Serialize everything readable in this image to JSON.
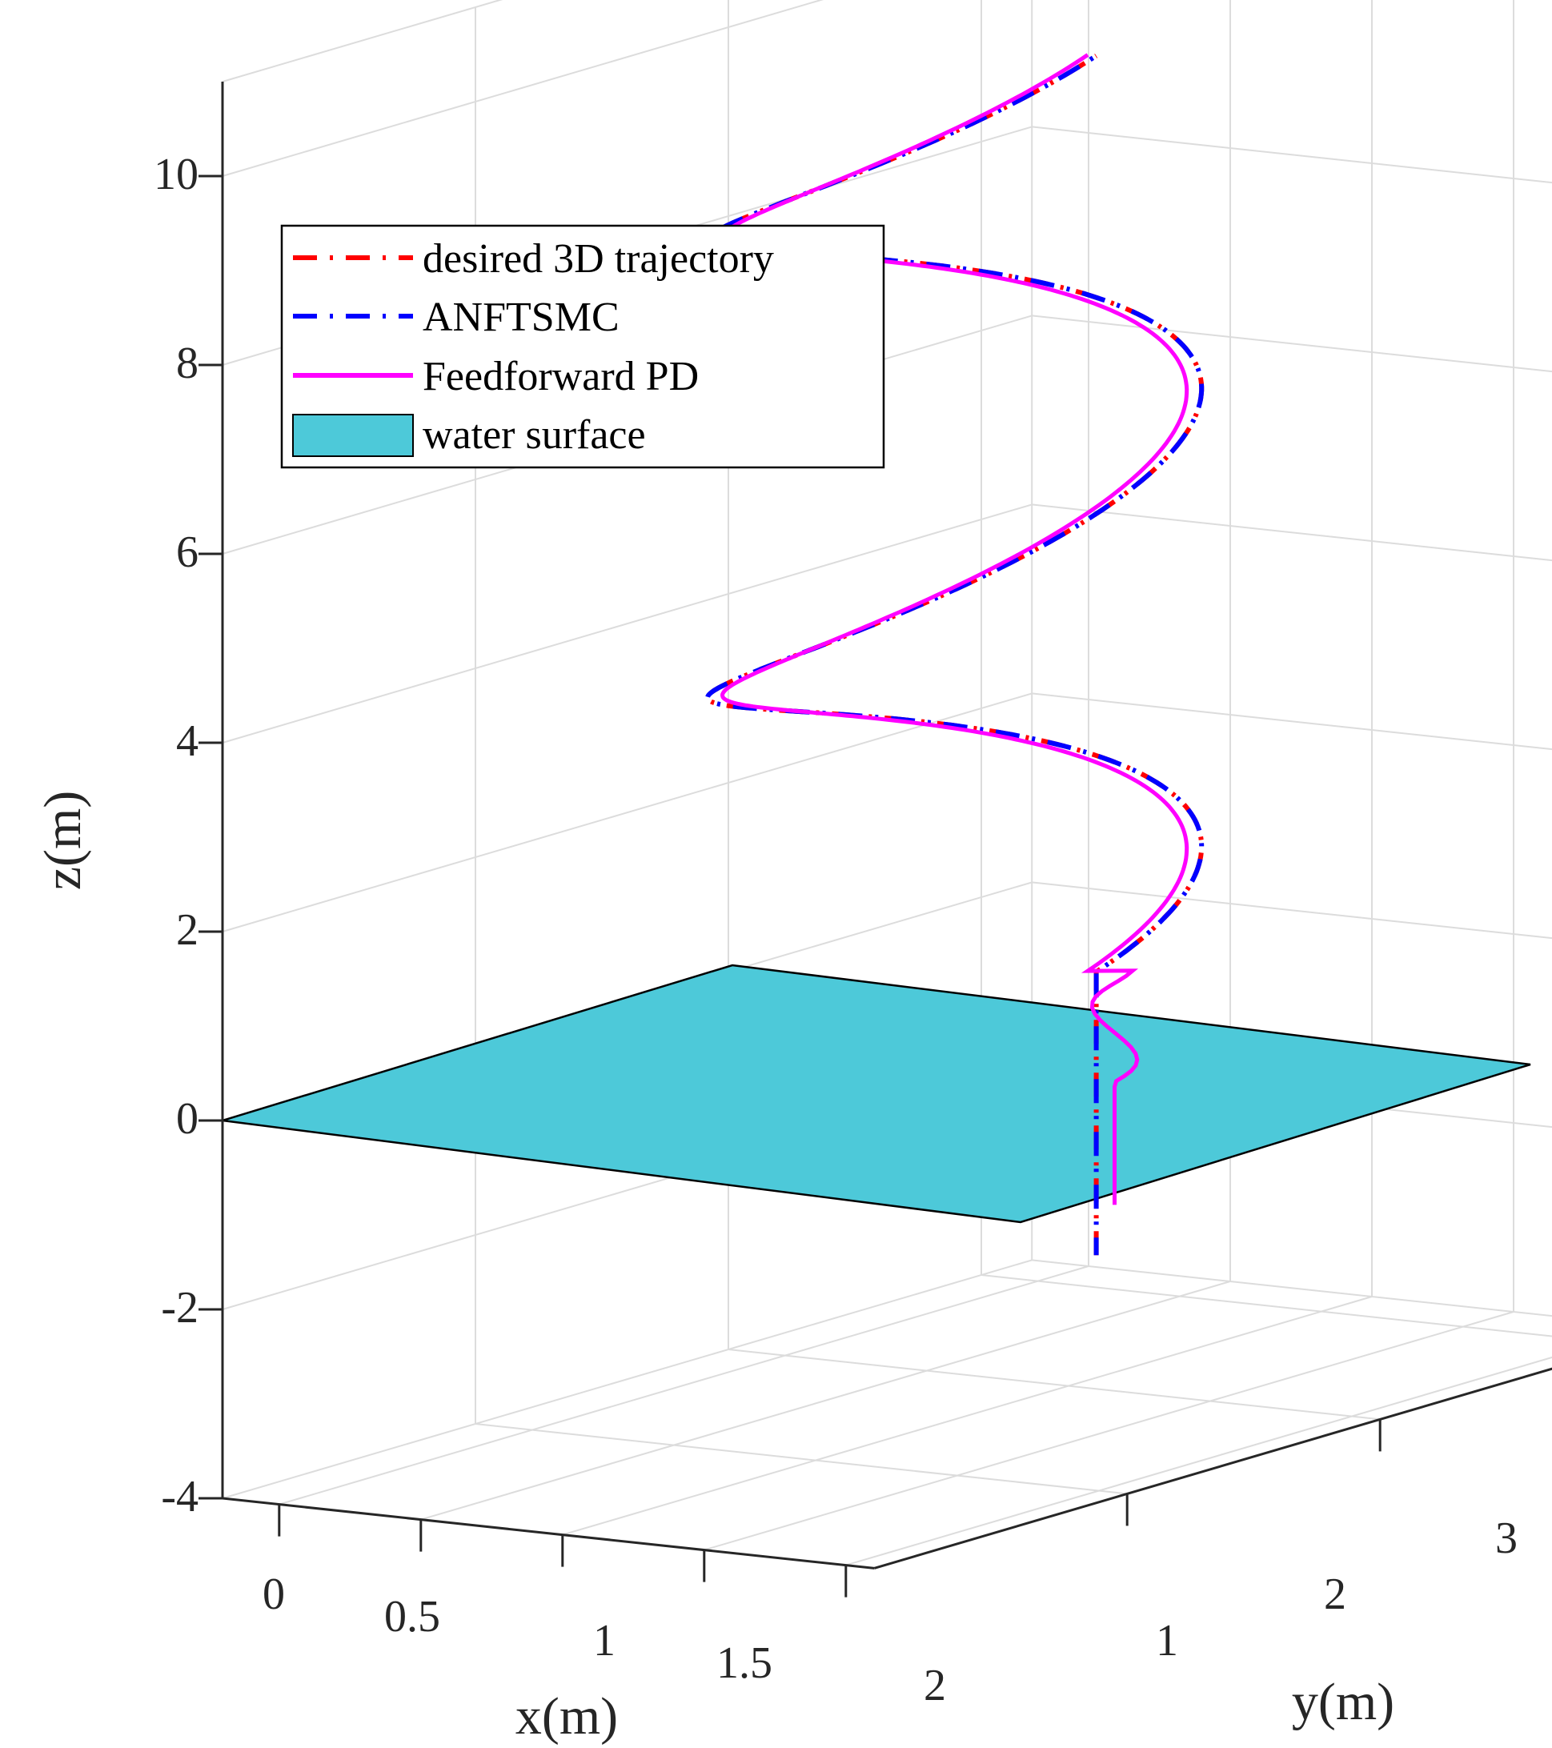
{
  "chart_data": {
    "type": "line3d",
    "title": "",
    "xlabel": "x(m)",
    "ylabel": "y(m)",
    "zlabel": "z(m)",
    "xlim": [
      -0.2,
      2.1
    ],
    "ylim": [
      0.0,
      3.2
    ],
    "zlim": [
      -4,
      11
    ],
    "x_ticks": [
      "0",
      "0.5",
      "1",
      "1.5",
      "2"
    ],
    "y_ticks": [
      "1",
      "2",
      "3"
    ],
    "z_ticks": [
      "10",
      "8",
      "6",
      "4",
      "2",
      "0",
      "-2",
      "-4"
    ],
    "grid": true,
    "legend_position": "top-left",
    "legend": [
      {
        "label": "desired 3D trajectory",
        "color": "#ff0000",
        "style": "dash-dot"
      },
      {
        "label": "ANFTSMC",
        "color": "#0000ff",
        "style": "dash-dot"
      },
      {
        "label": "Feedforward PD",
        "color": "#ff00ff",
        "style": "solid"
      },
      {
        "label": "water surface",
        "color": "#4dc9d9",
        "style": "patch"
      }
    ],
    "series": [
      {
        "name": "desired 3D trajectory",
        "color": "#ff0000",
        "description": "helix: vertical descent x=1.5,y=1.55 from z=-2.1 to z=0.9, then x=1.5+cos(t)... rising to z=10.6",
        "helix": {
          "center_x": 1.0,
          "center_y": 1.55,
          "radius": 0.5,
          "z_start": 0.9,
          "z_end": 10.6,
          "turns": 2
        },
        "descent": {
          "x": 1.5,
          "y": 1.55,
          "z_from": -2.1,
          "z_to": 0.9
        }
      },
      {
        "name": "ANFTSMC",
        "color": "#0000ff",
        "helix": {
          "center_x": 1.0,
          "center_y": 1.55,
          "radius": 0.5,
          "z_start": 0.9,
          "z_end": 10.6,
          "turns": 2
        },
        "descent": {
          "x": 1.5,
          "y": 1.55,
          "z_from": -2.1,
          "z_to": 0.9
        }
      },
      {
        "name": "Feedforward PD",
        "color": "#ff00ff",
        "helix": {
          "center_x": 1.0,
          "center_y": 1.55,
          "radius": 0.47,
          "z_start": 0.9,
          "z_end": 10.6,
          "turns": 2
        },
        "descent": {
          "x": 1.52,
          "y": 1.6,
          "z_from": -1.6,
          "z_to": 0.9
        }
      }
    ],
    "surface": {
      "name": "water surface",
      "z": 0,
      "color": "#4dc9d9"
    }
  }
}
